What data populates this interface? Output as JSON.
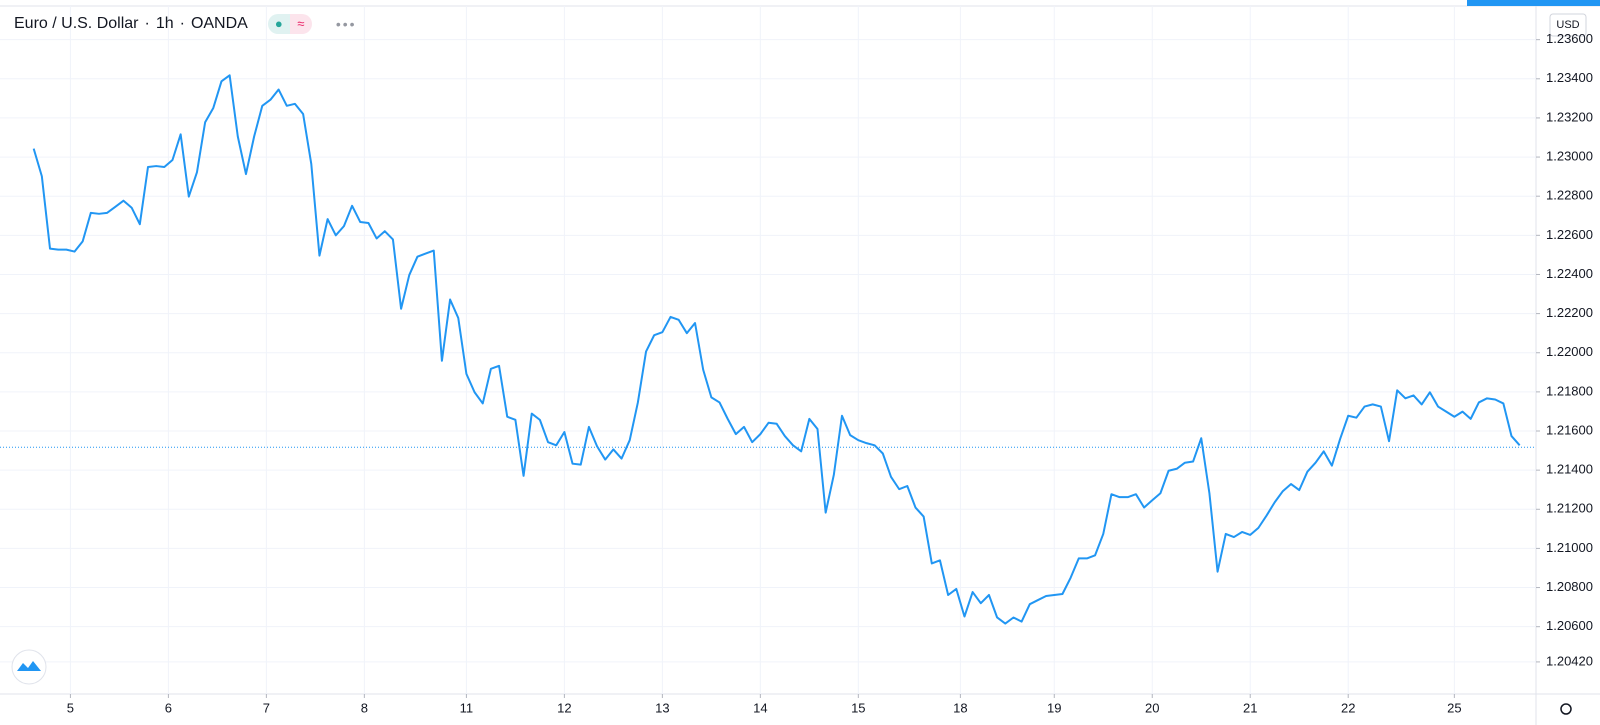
{
  "chart_data": {
    "type": "line",
    "title": "Euro / U.S. Dollar",
    "interval": "1h",
    "source": "OANDA",
    "currency": "USD",
    "color": "#2196f3",
    "grid": true,
    "xlim": [
      -17.25,
      359
    ],
    "ylim": [
      1.20256,
      1.23772
    ],
    "xticks": [
      {
        "value": 0,
        "label": "5"
      },
      {
        "value": 24,
        "label": "6"
      },
      {
        "value": 48,
        "label": "7"
      },
      {
        "value": 72,
        "label": "8"
      },
      {
        "value": 97,
        "label": "11"
      },
      {
        "value": 121,
        "label": "12"
      },
      {
        "value": 145,
        "label": "13"
      },
      {
        "value": 169,
        "label": "14"
      },
      {
        "value": 193,
        "label": "15"
      },
      {
        "value": 218,
        "label": "18"
      },
      {
        "value": 241,
        "label": "19"
      },
      {
        "value": 265,
        "label": "20"
      },
      {
        "value": 289,
        "label": "21"
      },
      {
        "value": 313,
        "label": "22"
      },
      {
        "value": 339,
        "label": "25"
      }
    ],
    "yticks": [
      {
        "value": 1.236,
        "label": "1.23600"
      },
      {
        "value": 1.234,
        "label": "1.23400"
      },
      {
        "value": 1.232,
        "label": "1.23200"
      },
      {
        "value": 1.23,
        "label": "1.23000"
      },
      {
        "value": 1.228,
        "label": "1.22800"
      },
      {
        "value": 1.226,
        "label": "1.22600"
      },
      {
        "value": 1.224,
        "label": "1.22400"
      },
      {
        "value": 1.222,
        "label": "1.22200"
      },
      {
        "value": 1.22,
        "label": "1.22000"
      },
      {
        "value": 1.218,
        "label": "1.21800"
      },
      {
        "value": 1.216,
        "label": "1.21600"
      },
      {
        "value": 1.214,
        "label": "1.21400"
      },
      {
        "value": 1.212,
        "label": "1.21200"
      },
      {
        "value": 1.21,
        "label": "1.21000"
      },
      {
        "value": 1.208,
        "label": "1.20800"
      },
      {
        "value": 1.206,
        "label": "1.20600"
      },
      {
        "value": 1.2042,
        "label": "1.20420"
      }
    ],
    "last_price": 1.21517,
    "x": [
      -9,
      -7,
      -5,
      -3,
      -1,
      1,
      3,
      5,
      7,
      9,
      11,
      13,
      15,
      17,
      19,
      21,
      23,
      25,
      27,
      29,
      31,
      33,
      35,
      37,
      39,
      41,
      43,
      45,
      47,
      49,
      51,
      53,
      55,
      57,
      59,
      61,
      63,
      65,
      67,
      69,
      71,
      73,
      75,
      77,
      79,
      81,
      83,
      85,
      87,
      89,
      91,
      93,
      95,
      97,
      99,
      101,
      103,
      105,
      107,
      109,
      111,
      113,
      115,
      117,
      119,
      121,
      123,
      125,
      127,
      129,
      131,
      133,
      135,
      137,
      139,
      141,
      143,
      145,
      147,
      149,
      151,
      153,
      155,
      157,
      159,
      161,
      163,
      165,
      167,
      169,
      171,
      173,
      175,
      177,
      179,
      181,
      183,
      185,
      187,
      189,
      191,
      193,
      195,
      197,
      199,
      201,
      203,
      205,
      207,
      209,
      211,
      213,
      215,
      217,
      219,
      221,
      223,
      225,
      227,
      229,
      231,
      233,
      235,
      237,
      239,
      241,
      243,
      245,
      247,
      249,
      251,
      253,
      255,
      257,
      259,
      261,
      263,
      265,
      267,
      269,
      271,
      273,
      275,
      277,
      279,
      281,
      283,
      285,
      287,
      289,
      291,
      293,
      295,
      297,
      299,
      301,
      303,
      305,
      307,
      309,
      311,
      313,
      315,
      317,
      319,
      321,
      323,
      325,
      327,
      329,
      331,
      333,
      335,
      337,
      339,
      341,
      343,
      345,
      347,
      349,
      351,
      353,
      355
    ],
    "values": [
      1.23043,
      1.22902,
      1.22532,
      1.22527,
      1.22527,
      1.22517,
      1.22569,
      1.22715,
      1.2271,
      1.22715,
      1.22746,
      1.22777,
      1.22741,
      1.22657,
      1.22949,
      1.22954,
      1.22949,
      1.22985,
      1.23116,
      1.22798,
      1.22923,
      1.23178,
      1.23251,
      1.23387,
      1.23418,
      1.23105,
      1.22913,
      1.23105,
      1.23262,
      1.23293,
      1.23345,
      1.23262,
      1.23272,
      1.2322,
      1.22965,
      1.22496,
      1.22683,
      1.226,
      1.22647,
      1.22751,
      1.22668,
      1.22663,
      1.22584,
      1.22621,
      1.22579,
      1.22225,
      1.22397,
      1.22491,
      1.22507,
      1.22522,
      1.21959,
      1.22272,
      1.22178,
      1.21892,
      1.21798,
      1.21741,
      1.21918,
      1.21933,
      1.21673,
      1.21657,
      1.21371,
      1.21689,
      1.21657,
      1.21543,
      1.21527,
      1.21595,
      1.21433,
      1.21428,
      1.21621,
      1.21522,
      1.21454,
      1.21506,
      1.21459,
      1.21553,
      1.21746,
      1.22006,
      1.2209,
      1.22105,
      1.22183,
      1.22168,
      1.221,
      1.22152,
      1.21913,
      1.21772,
      1.21746,
      1.21662,
      1.21584,
      1.21621,
      1.21543,
      1.21584,
      1.21642,
      1.21637,
      1.21574,
      1.21527,
      1.21496,
      1.21662,
      1.2161,
      1.21183,
      1.21376,
      1.21678,
      1.21579,
      1.21553,
      1.21538,
      1.21527,
      1.21485,
      1.21366,
      1.21303,
      1.21319,
      1.21209,
      1.21163,
      1.20923,
      1.20939,
      1.20762,
      1.20793,
      1.20652,
      1.20777,
      1.2072,
      1.20762,
      1.20647,
      1.20616,
      1.20647,
      1.20626,
      1.20715,
      1.20736,
      1.20757,
      1.20762,
      1.20767,
      1.2085,
      1.20949,
      1.20949,
      1.20965,
      1.21074,
      1.21277,
      1.21262,
      1.21262,
      1.21277,
      1.21209,
      1.21246,
      1.21282,
      1.21397,
      1.21407,
      1.21438,
      1.21444,
      1.21563,
      1.21282,
      1.20881,
      1.21074,
      1.21058,
      1.21084,
      1.21069,
      1.21105,
      1.21168,
      1.21236,
      1.21293,
      1.21329,
      1.21298,
      1.21392,
      1.21438,
      1.21496,
      1.21423,
      1.21558,
      1.21678,
      1.21668,
      1.21725,
      1.21736,
      1.21725,
      1.21548,
      1.21808,
      1.21767,
      1.21782,
      1.21736,
      1.21798,
      1.21725,
      1.21699,
      1.21673,
      1.21699,
      1.21662,
      1.21746,
      1.21767,
      1.21761,
      1.21741,
      1.21574,
      1.21527
    ]
  }
}
